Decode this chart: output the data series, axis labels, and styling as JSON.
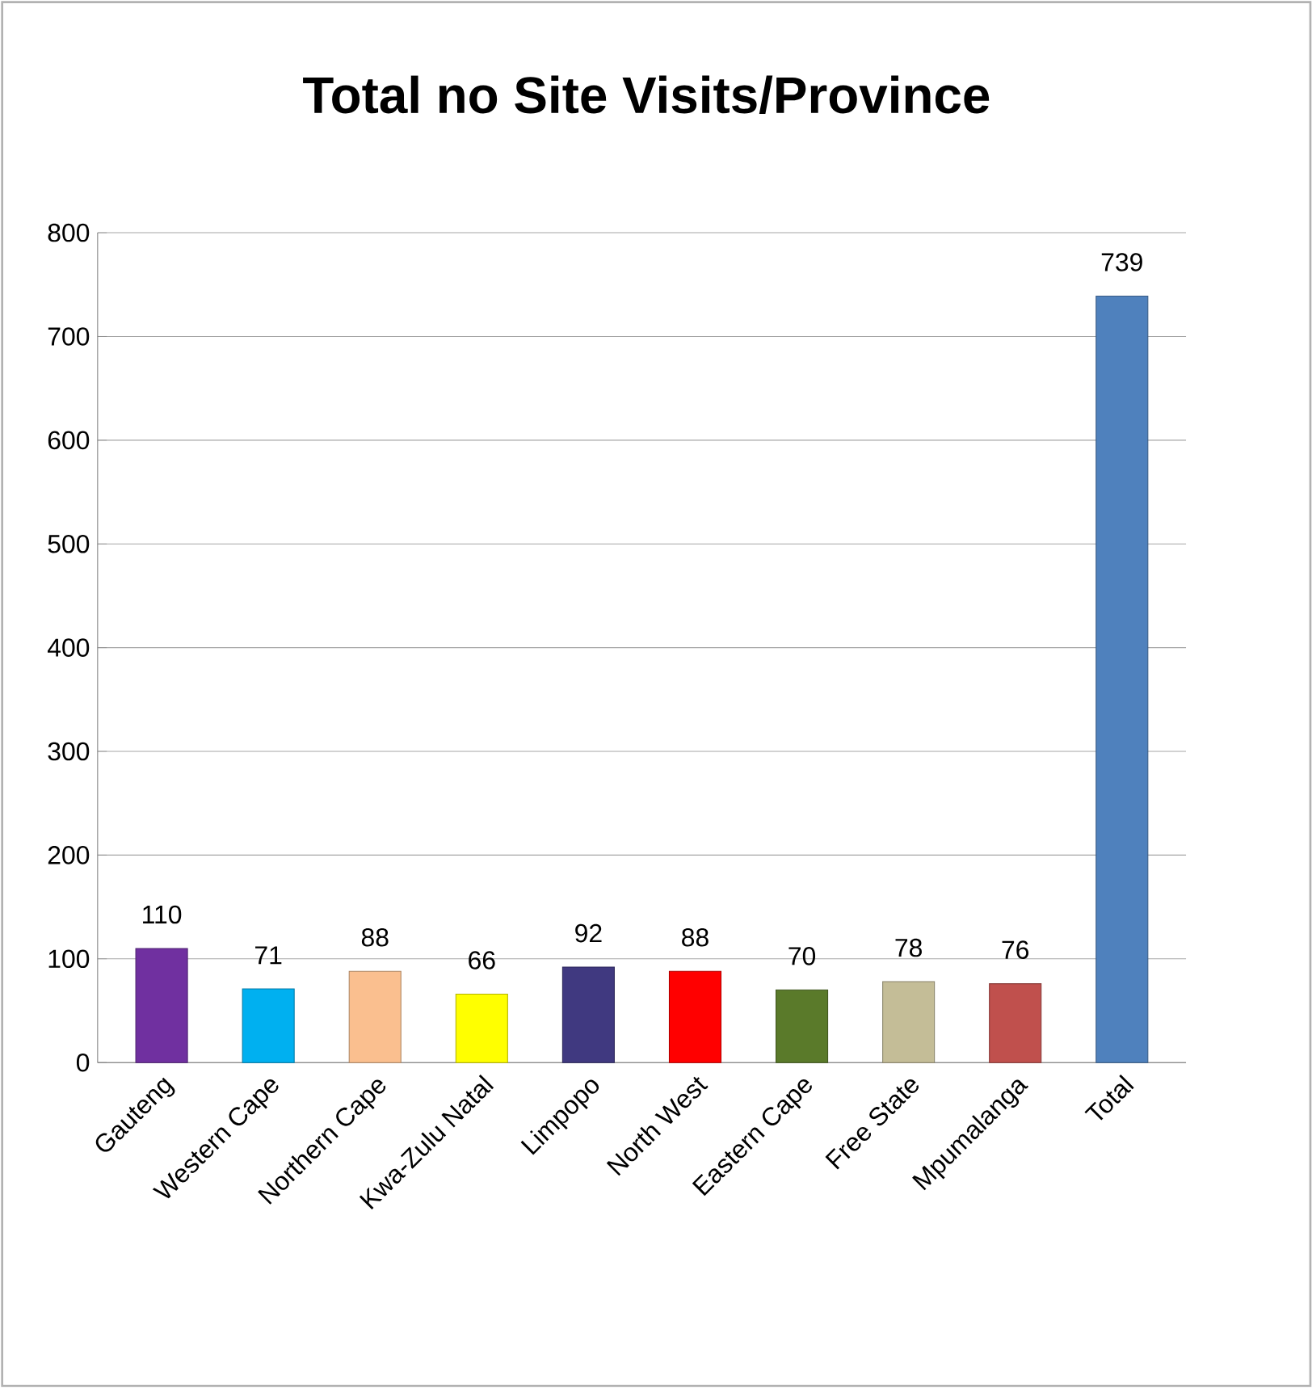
{
  "chart_data": {
    "type": "bar",
    "title": "Total no Site Visits/Province",
    "categories": [
      "Gauteng",
      "Western Cape",
      "Northern Cape",
      "Kwa-Zulu Natal",
      "Limpopo",
      "North West",
      "Eastern Cape",
      "Free State",
      "Mpumalanga",
      "Total"
    ],
    "values": [
      110,
      71,
      88,
      66,
      92,
      88,
      70,
      78,
      76,
      739
    ],
    "colors": [
      "#7030a0",
      "#00b0f0",
      "#fabf8f",
      "#ffff00",
      "#403980",
      "#ff0000",
      "#5a7a2a",
      "#c4bd97",
      "#c0504d",
      "#4f81bd"
    ],
    "ylim": [
      0,
      800
    ],
    "yticks": [
      0,
      100,
      200,
      300,
      400,
      500,
      600,
      700,
      800
    ],
    "grid": "y",
    "data_labels": true
  }
}
